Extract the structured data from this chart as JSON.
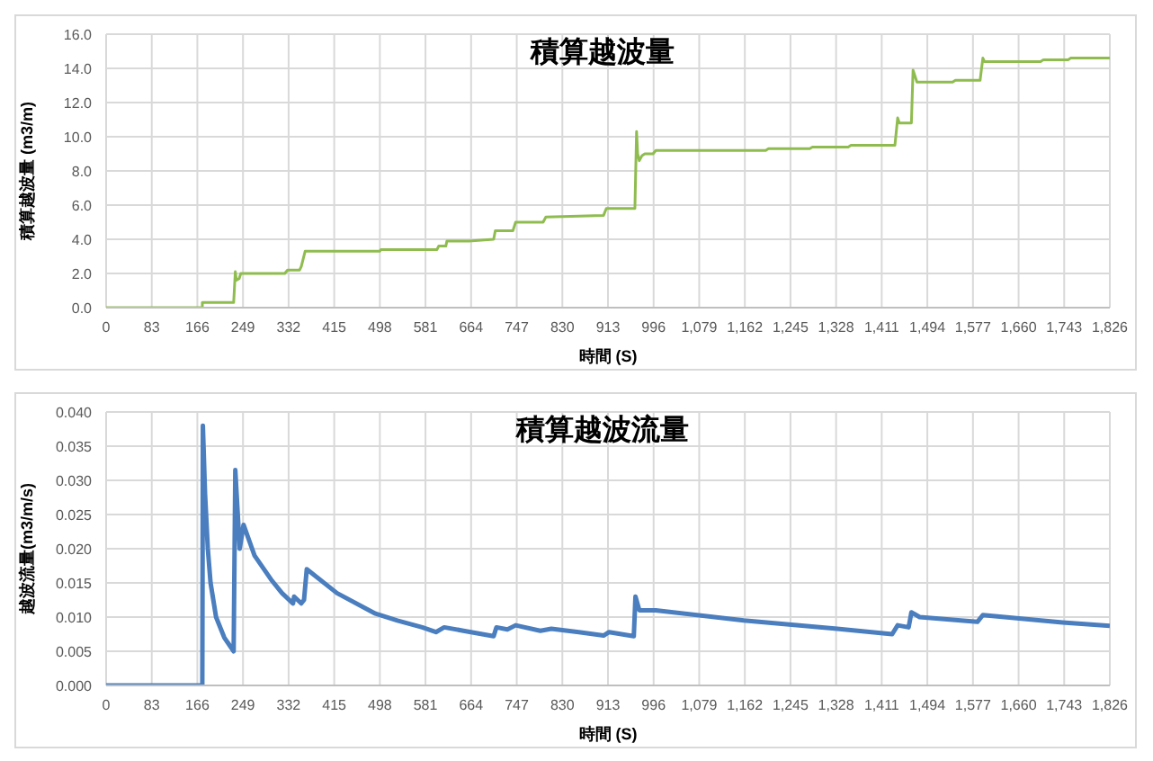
{
  "chart_data": [
    {
      "type": "line",
      "title": "積算越波量",
      "xlabel": "時間 (S)",
      "ylabel": "積算越波量 (m3/m)",
      "grid": true,
      "x": [
        0,
        175,
        175,
        232,
        235,
        237,
        242,
        245,
        325,
        330,
        352,
        355,
        362,
        498,
        500,
        602,
        605,
        618,
        620,
        660,
        705,
        708,
        740,
        745,
        795,
        800,
        905,
        910,
        962,
        965,
        967,
        970,
        975,
        980,
        995,
        1000,
        1200,
        1205,
        1280,
        1285,
        1350,
        1355,
        1435,
        1440,
        1443,
        1447,
        1465,
        1468,
        1472,
        1475,
        1540,
        1545,
        1590,
        1595,
        1598,
        1600,
        1700,
        1705,
        1750,
        1755,
        1826
      ],
      "series": [
        {
          "color": "#8fbc4f",
          "values": [
            0,
            0,
            0.3,
            0.3,
            2.1,
            1.6,
            1.7,
            2.0,
            2.0,
            2.2,
            2.2,
            2.4,
            3.3,
            3.3,
            3.4,
            3.4,
            3.6,
            3.6,
            3.9,
            3.9,
            4.0,
            4.5,
            4.5,
            5.0,
            5.0,
            5.3,
            5.4,
            5.8,
            5.8,
            10.3,
            9.0,
            8.6,
            8.9,
            9.0,
            9.0,
            9.2,
            9.2,
            9.3,
            9.3,
            9.4,
            9.4,
            9.5,
            9.5,
            11.1,
            10.8,
            10.8,
            10.8,
            13.9,
            13.5,
            13.2,
            13.2,
            13.3,
            13.3,
            14.6,
            14.4,
            14.4,
            14.4,
            14.5,
            14.5,
            14.6,
            14.6
          ]
        }
      ],
      "xlim": [
        0,
        1826
      ],
      "xticks": [
        0,
        83,
        166,
        249,
        332,
        415,
        498,
        581,
        664,
        747,
        830,
        913,
        996,
        {
          "value": 1079,
          "label": "1,079"
        },
        {
          "value": 1162,
          "label": "1,162"
        },
        {
          "value": 1245,
          "label": "1,245"
        },
        {
          "value": 1328,
          "label": "1,328"
        },
        {
          "value": 1411,
          "label": "1,411"
        },
        {
          "value": 1494,
          "label": "1,494"
        },
        {
          "value": 1577,
          "label": "1,577"
        },
        {
          "value": 1660,
          "label": "1,660"
        },
        {
          "value": 1743,
          "label": "1,743"
        },
        {
          "value": 1826,
          "label": "1,826"
        }
      ],
      "ylim": [
        0,
        16
      ],
      "yticks": [
        {
          "value": 0,
          "label": "0.0"
        },
        {
          "value": 2,
          "label": "2.0"
        },
        {
          "value": 4,
          "label": "4.0"
        },
        {
          "value": 6,
          "label": "6.0"
        },
        {
          "value": 8,
          "label": "8.0"
        },
        {
          "value": 10,
          "label": "10.0"
        },
        {
          "value": 12,
          "label": "12.0"
        },
        {
          "value": 14,
          "label": "14.0"
        },
        {
          "value": 16,
          "label": "16.0"
        }
      ]
    },
    {
      "type": "line",
      "title": "積算越波流量",
      "xlabel": "時間 (S)",
      "ylabel": "越波流量(m3/m/s)",
      "grid": true,
      "x": [
        0,
        175,
        176,
        180,
        185,
        190,
        200,
        215,
        232,
        235,
        243,
        250,
        270,
        300,
        320,
        340,
        342,
        355,
        360,
        365,
        420,
        490,
        530,
        575,
        600,
        615,
        650,
        705,
        710,
        730,
        745,
        790,
        810,
        860,
        905,
        915,
        960,
        963,
        970,
        1000,
        1160,
        1330,
        1430,
        1440,
        1460,
        1465,
        1480,
        1585,
        1595,
        1740,
        1826
      ],
      "series": [
        {
          "color": "#4a7ebf",
          "values": [
            0,
            0,
            0.038,
            0.028,
            0.02,
            0.015,
            0.01,
            0.007,
            0.005,
            0.0315,
            0.02,
            0.0235,
            0.019,
            0.0155,
            0.0135,
            0.012,
            0.013,
            0.012,
            0.0125,
            0.017,
            0.0135,
            0.0105,
            0.0095,
            0.0085,
            0.0078,
            0.0085,
            0.008,
            0.0072,
            0.0085,
            0.0082,
            0.0088,
            0.008,
            0.0083,
            0.0078,
            0.0073,
            0.0078,
            0.0072,
            0.013,
            0.011,
            0.011,
            0.0095,
            0.0083,
            0.0075,
            0.0088,
            0.0085,
            0.0107,
            0.01,
            0.0093,
            0.0103,
            0.0092,
            0.0087
          ]
        }
      ],
      "xlim": [
        0,
        1826
      ],
      "xticks": [
        0,
        83,
        166,
        249,
        332,
        415,
        498,
        581,
        664,
        747,
        830,
        913,
        996,
        {
          "value": 1079,
          "label": "1,079"
        },
        {
          "value": 1162,
          "label": "1,162"
        },
        {
          "value": 1245,
          "label": "1,245"
        },
        {
          "value": 1328,
          "label": "1,328"
        },
        {
          "value": 1411,
          "label": "1,411"
        },
        {
          "value": 1494,
          "label": "1,494"
        },
        {
          "value": 1577,
          "label": "1,577"
        },
        {
          "value": 1660,
          "label": "1,660"
        },
        {
          "value": 1743,
          "label": "1,743"
        },
        {
          "value": 1826,
          "label": "1,826"
        }
      ],
      "ylim": [
        0,
        0.04
      ],
      "yticks": [
        {
          "value": 0,
          "label": "0.000"
        },
        {
          "value": 0.005,
          "label": "0.005"
        },
        {
          "value": 0.01,
          "label": "0.010"
        },
        {
          "value": 0.015,
          "label": "0.015"
        },
        {
          "value": 0.02,
          "label": "0.020"
        },
        {
          "value": 0.025,
          "label": "0.025"
        },
        {
          "value": 0.03,
          "label": "0.030"
        },
        {
          "value": 0.035,
          "label": "0.035"
        },
        {
          "value": 0.04,
          "label": "0.040"
        }
      ]
    }
  ]
}
